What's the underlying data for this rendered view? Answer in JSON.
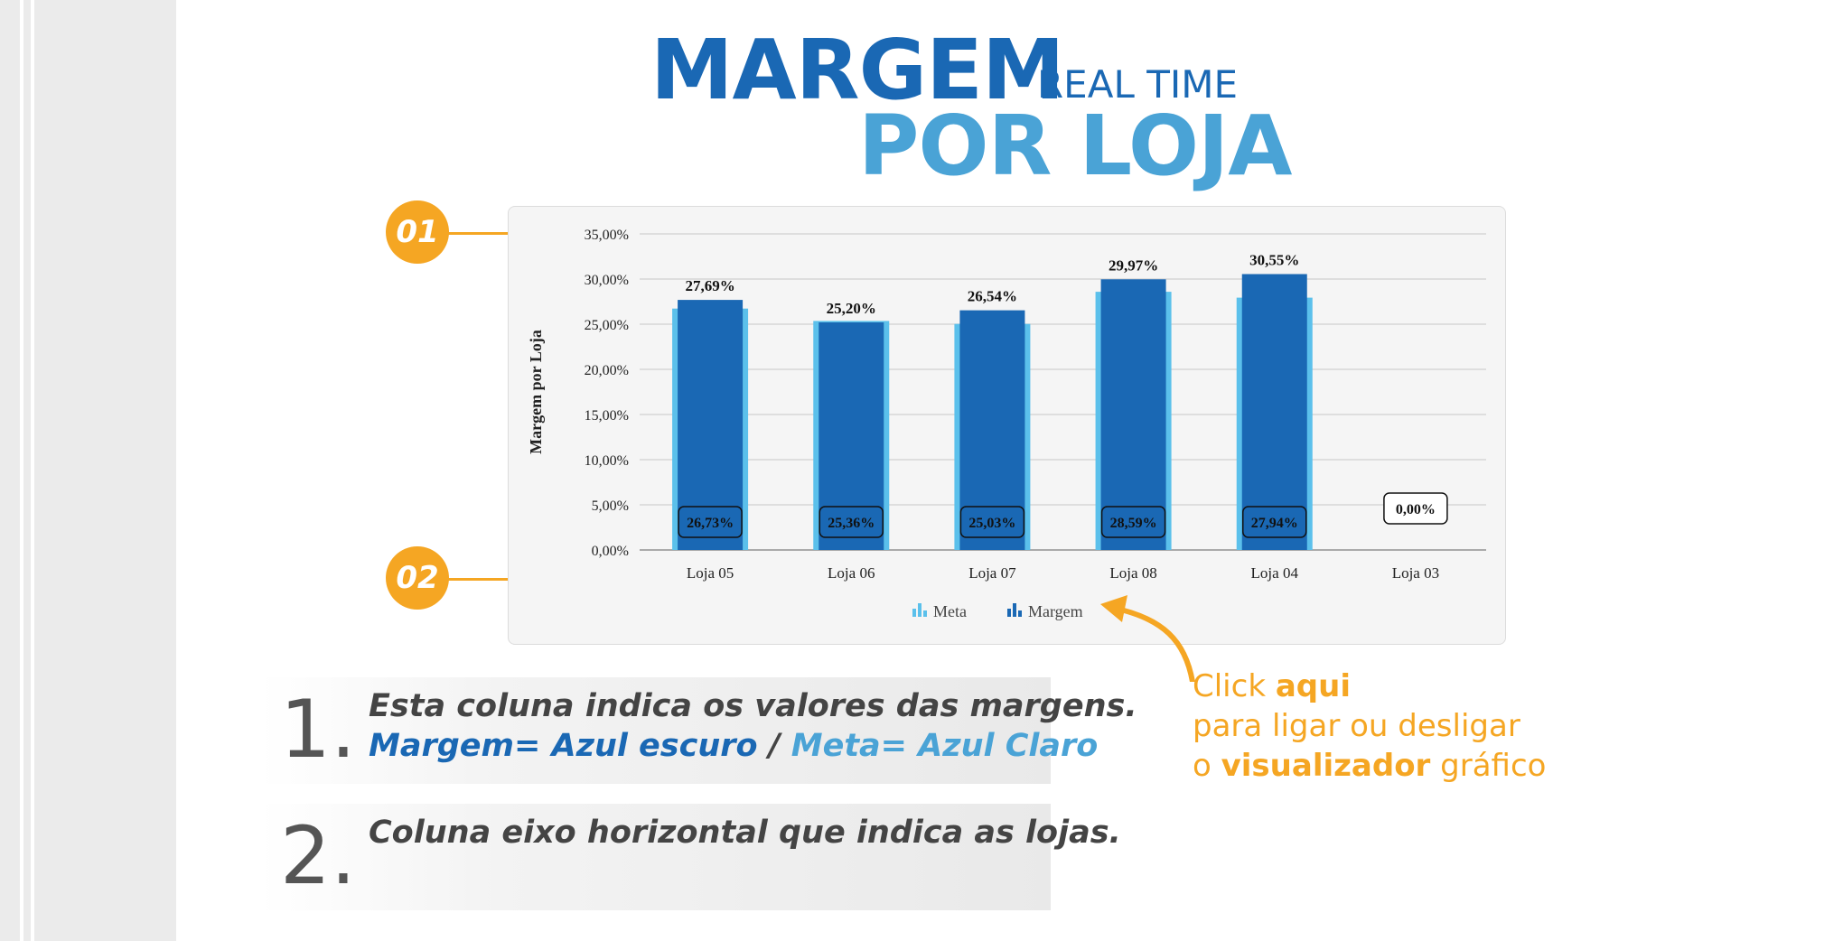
{
  "header": {
    "title_main": "MARGEM",
    "title_small": "REAL TIME",
    "title_sub": "POR LOJA"
  },
  "callouts": {
    "first": "01",
    "second": "02"
  },
  "chart_data": {
    "type": "bar",
    "categories": [
      "Loja 05",
      "Loja 06",
      "Loja 07",
      "Loja 08",
      "Loja 04",
      "Loja 03"
    ],
    "series": [
      {
        "name": "Meta",
        "values": [
          26.73,
          25.36,
          25.03,
          28.59,
          27.94,
          0.0
        ],
        "labels": [
          "26,73%",
          "25,36%",
          "25,03%",
          "28,59%",
          "27,94%",
          "0,00%"
        ]
      },
      {
        "name": "Margem",
        "values": [
          27.69,
          25.2,
          26.54,
          29.97,
          30.55,
          0.0
        ],
        "labels": [
          "27,69%",
          "25,20%",
          "26,54%",
          "29,97%",
          "30,55%",
          ""
        ]
      }
    ],
    "ylabel": "Margem por Loja",
    "xlabel": "",
    "ylim": [
      0,
      35
    ],
    "yticks": [
      "0,00%",
      "5,00%",
      "10,00%",
      "15,00%",
      "20,00%",
      "25,00%",
      "30,00%",
      "35,00%"
    ],
    "grid": true,
    "legend": "bottom-center",
    "colors": {
      "Meta": "#5bc0eb",
      "Margem": "#1a68b4"
    }
  },
  "notes": {
    "one": {
      "number": "1.",
      "line1": "Esta coluna indica os valores das margens.",
      "dark_label": "Margem= Azul escuro",
      "separator": " / ",
      "light_label": "Meta= Azul Claro"
    },
    "two": {
      "number": "2.",
      "line1": "Coluna eixo horizontal que indica as lojas."
    }
  },
  "click_hint": {
    "w1": "Click ",
    "w2": "aqui",
    "line2": "para  ligar ou desligar",
    "w3": "o ",
    "w4": "visualizador",
    "w5": " gráfico"
  },
  "colors": {
    "orange": "#f5a623",
    "dark_blue": "#1a68b4",
    "light_blue": "#4aa3d6"
  }
}
